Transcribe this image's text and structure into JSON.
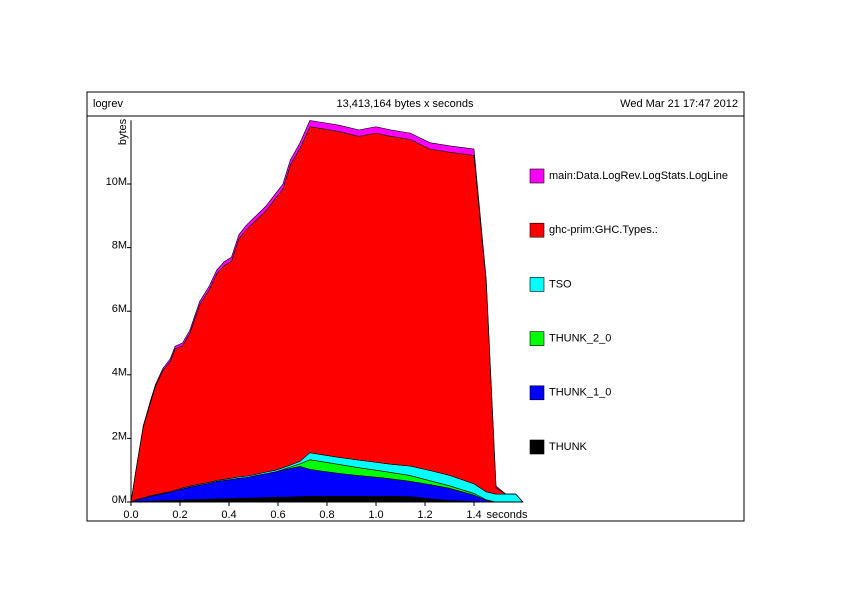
{
  "chart_data": {
    "type": "area",
    "stacked": true,
    "title": "logrev",
    "subtitle": "13,413,164 bytes x seconds",
    "date": "Wed Mar 21 17:47 2012",
    "x_label": "seconds",
    "y_label": "bytes",
    "x": [
      0,
      0.02,
      0.05,
      0.08,
      0.1,
      0.13,
      0.16,
      0.18,
      0.21,
      0.24,
      0.28,
      0.32,
      0.35,
      0.38,
      0.41,
      0.44,
      0.47,
      0.51,
      0.55,
      0.59,
      0.62,
      0.65,
      0.69,
      0.73,
      0.77,
      0.85,
      0.93,
      1.0,
      1.06,
      1.14,
      1.22,
      1.3,
      1.4,
      1.45,
      1.49,
      1.53,
      1.57,
      1.6
    ],
    "xlim": [
      0,
      1.6
    ],
    "xticks": [
      {
        "value": 0,
        "label": "0.0"
      },
      0.2,
      0.4,
      0.6,
      0.8,
      {
        "value": 1,
        "label": "1.0"
      },
      1.2,
      1.4
    ],
    "ylim": [
      0,
      12000000
    ],
    "yticks": [
      {
        "value": 0,
        "label": "0M"
      },
      {
        "value": 2000000,
        "label": "2M"
      },
      {
        "value": 4000000,
        "label": "4M"
      },
      {
        "value": 6000000,
        "label": "6M"
      },
      {
        "value": 8000000,
        "label": "8M"
      },
      {
        "value": 10000000,
        "label": "10M"
      }
    ],
    "series": [
      {
        "name": "THUNK",
        "color": "#000000",
        "values": [
          0,
          10000,
          20000,
          30000,
          30000,
          40000,
          50000,
          50000,
          60000,
          70000,
          80000,
          90000,
          100000,
          100000,
          110000,
          120000,
          120000,
          130000,
          140000,
          150000,
          150000,
          160000,
          170000,
          180000,
          180000,
          180000,
          180000,
          180000,
          180000,
          170000,
          100000,
          50000,
          20000,
          0,
          0,
          0,
          0,
          0
        ]
      },
      {
        "name": "THUNK_1_0",
        "color": "#0000ff",
        "values": [
          0,
          50000,
          100000,
          150000,
          180000,
          220000,
          260000,
          300000,
          350000,
          400000,
          450000,
          500000,
          550000,
          580000,
          600000,
          630000,
          650000,
          700000,
          750000,
          800000,
          850000,
          900000,
          950000,
          850000,
          800000,
          720000,
          650000,
          600000,
          550000,
          480000,
          450000,
          380000,
          200000,
          50000,
          0,
          0,
          0,
          0
        ]
      },
      {
        "name": "THUNK_2_0",
        "color": "#00ff00",
        "values": [
          0,
          0,
          0,
          0,
          0,
          0,
          0,
          0,
          0,
          0,
          0,
          0,
          0,
          0,
          0,
          0,
          0,
          0,
          0,
          0,
          20000,
          40000,
          80000,
          300000,
          300000,
          280000,
          250000,
          220000,
          200000,
          180000,
          120000,
          80000,
          50000,
          20000,
          0,
          0,
          0,
          0
        ]
      },
      {
        "name": "TSO",
        "color": "#00ffff",
        "values": [
          0,
          10000,
          10000,
          20000,
          20000,
          20000,
          20000,
          20000,
          30000,
          30000,
          30000,
          30000,
          30000,
          30000,
          40000,
          40000,
          40000,
          40000,
          50000,
          50000,
          60000,
          60000,
          80000,
          220000,
          220000,
          220000,
          240000,
          250000,
          260000,
          300000,
          320000,
          330000,
          300000,
          250000,
          250000,
          250000,
          250000,
          0
        ]
      },
      {
        "name": "ghc-prim:GHC.Types.:",
        "color": "#ff0000",
        "values": [
          0,
          910000,
          2230000,
          2940000,
          3410000,
          3850000,
          4090000,
          4450000,
          4470000,
          4800000,
          5640000,
          6070000,
          6500000,
          6720000,
          6820000,
          7480000,
          7750000,
          7990000,
          8210000,
          8550000,
          8760000,
          9430000,
          9850000,
          10250000,
          10250000,
          10250000,
          10180000,
          10350000,
          10310000,
          10270000,
          10110000,
          10160000,
          10330000,
          6580000,
          200000,
          0,
          0,
          0
        ]
      },
      {
        "name": "main:Data.LogRev.LogStats.LogLine",
        "color": "#ff00ff",
        "values": [
          0,
          20000,
          40000,
          60000,
          60000,
          70000,
          80000,
          80000,
          90000,
          100000,
          100000,
          110000,
          120000,
          120000,
          130000,
          130000,
          140000,
          140000,
          150000,
          150000,
          160000,
          160000,
          170000,
          200000,
          200000,
          200000,
          200000,
          200000,
          200000,
          200000,
          200000,
          200000,
          200000,
          100000,
          50000,
          0,
          0,
          0
        ]
      }
    ]
  }
}
